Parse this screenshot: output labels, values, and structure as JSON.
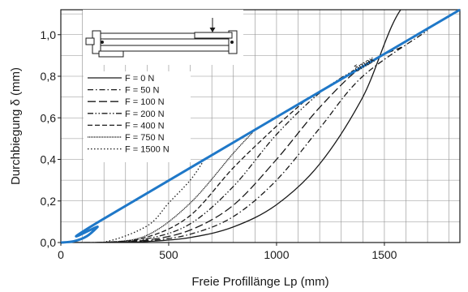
{
  "chart_data": {
    "type": "line",
    "title": "",
    "xlabel": "Freie Profillänge Lp (mm)",
    "ylabel": "Durchbiegung δ (mm)",
    "xlim": [
      0,
      1850
    ],
    "ylim": [
      0,
      1.12
    ],
    "x_ticks": [
      0,
      500,
      1000,
      1500
    ],
    "x_tick_labels": [
      "0",
      "500",
      "1000",
      "1500"
    ],
    "y_ticks": [
      0,
      0.2,
      0.4,
      0.6,
      0.8,
      1.0
    ],
    "y_tick_labels": [
      "0,0",
      "0,2",
      "0,4",
      "0,6",
      "0,8",
      "1,0"
    ],
    "grid": true,
    "grid_minor_x_step": 100,
    "grid_minor_y_step": 0.1,
    "legend_position": "upper-left",
    "colors": {
      "max_line": "#1f78c8",
      "curves": "#1a1a1a",
      "grid": "#8f8f8f"
    },
    "annotation": "δmax",
    "max_line": {
      "name": "δmax",
      "x": [
        0,
        60,
        120,
        170,
        200,
        1850
      ],
      "y": [
        0,
        0.006,
        0.03,
        0.075,
        0.115,
        1.12
      ]
    },
    "series": [
      {
        "name": "F = 0 N",
        "dash": "solid",
        "x": [
          0,
          200,
          400,
          600,
          800,
          1000,
          1200,
          1400,
          1600,
          1850
        ],
        "y": [
          0,
          0.0003,
          0.005,
          0.024,
          0.075,
          0.182,
          0.378,
          0.7,
          1.15,
          1.12
        ]
      },
      {
        "name": "F = 50 N",
        "dash": "dashdot",
        "x": [
          0,
          200,
          400,
          600,
          800,
          1000,
          1200,
          1400,
          1700
        ],
        "y": [
          0,
          0.0004,
          0.008,
          0.04,
          0.125,
          0.3,
          0.55,
          0.8,
          1.02
        ]
      },
      {
        "name": "F = 100 N",
        "dash": "longdash",
        "x": [
          0,
          200,
          400,
          600,
          800,
          1000,
          1200,
          1400,
          1580
        ],
        "y": [
          0,
          0.0005,
          0.012,
          0.06,
          0.18,
          0.4,
          0.65,
          0.85,
          0.94
        ]
      },
      {
        "name": "F = 200 N",
        "dash": "dashdotdot",
        "x": [
          0,
          200,
          400,
          600,
          800,
          1000,
          1200,
          1360
        ],
        "y": [
          0,
          0.0006,
          0.018,
          0.09,
          0.27,
          0.52,
          0.72,
          0.83
        ]
      },
      {
        "name": "F = 400 N",
        "dash": "dashed",
        "x": [
          0,
          200,
          400,
          600,
          800,
          1000,
          1130
        ],
        "y": [
          0,
          0.0008,
          0.026,
          0.13,
          0.36,
          0.56,
          0.68
        ]
      },
      {
        "name": "F = 750 N",
        "dash": "densedot",
        "x": [
          0,
          200,
          400,
          600,
          800,
          890
        ],
        "y": [
          0,
          0.001,
          0.035,
          0.19,
          0.43,
          0.53
        ]
      },
      {
        "name": "F = 1500 N",
        "dash": "dotted",
        "x": [
          0,
          200,
          400,
          500,
          600,
          660
        ],
        "y": [
          0,
          0.002,
          0.08,
          0.19,
          0.3,
          0.39
        ]
      }
    ]
  }
}
